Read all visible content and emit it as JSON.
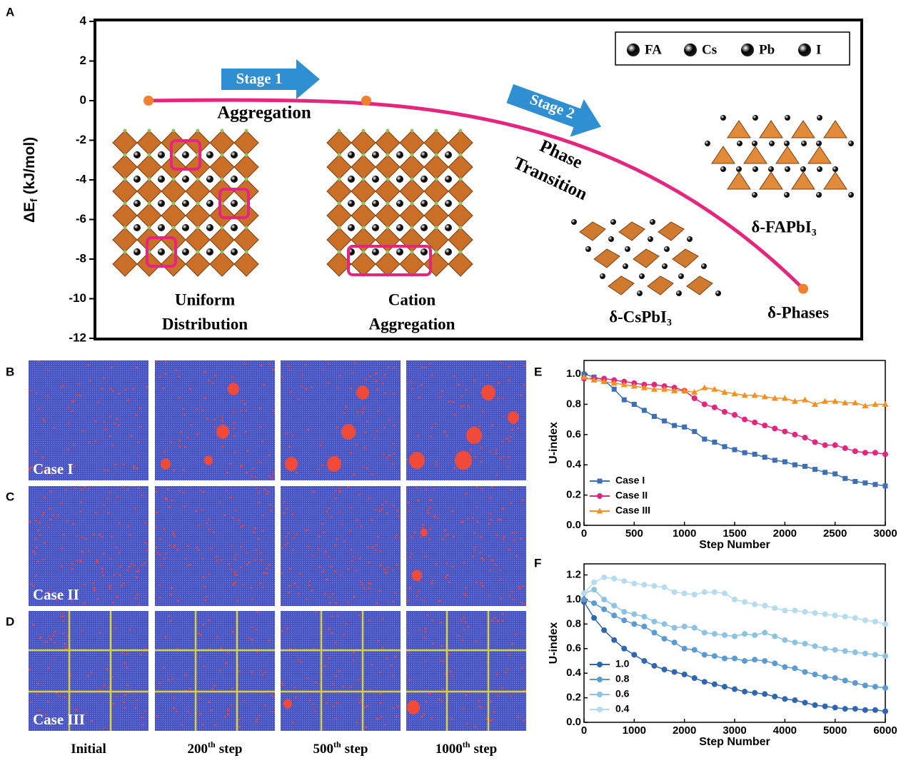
{
  "figure": {
    "panel_labels": [
      "A",
      "B",
      "C",
      "D",
      "E",
      "F"
    ],
    "simulation": {
      "cases": [
        "Case I",
        "Case II",
        "Case III"
      ],
      "columns": [
        {
          "text": "Initial"
        },
        {
          "text": "200",
          "sup": "th",
          "rest": "step"
        },
        {
          "text": "500",
          "sup": "th",
          "rest": "step"
        },
        {
          "text": "1000",
          "sup": "th",
          "rest": "step"
        }
      ]
    }
  },
  "chart_data": [
    {
      "type": "energy",
      "y_label": {
        "main": "ΔE",
        "sub": "f",
        "unit": "(kJ/mol)"
      },
      "categories": [
        null,
        null,
        null
      ],
      "values": [
        0,
        0,
        -9.5
      ],
      "color": "#e5267e",
      "marker_color": "#f08030",
      "ylim": [
        -12,
        4
      ],
      "yticks": [
        4,
        2,
        0,
        -2,
        -4,
        -6,
        -8,
        -10,
        -12
      ],
      "legend": [
        {
          "name": "FA",
          "color": "#4a63b8"
        },
        {
          "name": "Cs",
          "color": "#e5267e"
        },
        {
          "name": "Pb",
          "color": "#d9a22a"
        },
        {
          "name": "I",
          "color": "#5c9a45"
        }
      ],
      "annotations": {
        "stage1": "Stage 1",
        "aggregation": "Aggregation",
        "stage2": "Stage 2",
        "phase_transition": [
          "Phase",
          "Transition"
        ],
        "uniform": [
          "Uniform",
          "Distribution"
        ],
        "cation": [
          "Cation",
          "Aggregation"
        ],
        "cspbi3": "δ-CsPbI₃",
        "fapbi3": "δ-FAPbI₃",
        "phases": "δ-Phases"
      }
    },
    {
      "type": "line",
      "x_label": "Step Number",
      "y_label": "U-index",
      "x": [
        0,
        100,
        200,
        300,
        400,
        500,
        600,
        700,
        800,
        900,
        1000,
        1100,
        1200,
        1300,
        1400,
        1500,
        1600,
        1700,
        1800,
        1900,
        2000,
        2100,
        2200,
        2300,
        2400,
        2500,
        2600,
        2700,
        2800,
        2900,
        3000
      ],
      "series": [
        {
          "name": "Case I",
          "color": "#3d6fb6",
          "marker": "square",
          "values": [
            1.0,
            0.98,
            0.96,
            0.9,
            0.83,
            0.8,
            0.76,
            0.72,
            0.69,
            0.66,
            0.65,
            0.62,
            0.57,
            0.55,
            0.52,
            0.5,
            0.48,
            0.47,
            0.45,
            0.43,
            0.42,
            0.4,
            0.39,
            0.37,
            0.35,
            0.34,
            0.31,
            0.29,
            0.28,
            0.27,
            0.26
          ]
        },
        {
          "name": "Case II",
          "color": "#e5267e",
          "marker": "circle",
          "values": [
            0.97,
            0.97,
            0.97,
            0.96,
            0.95,
            0.94,
            0.93,
            0.93,
            0.92,
            0.91,
            0.89,
            0.84,
            0.8,
            0.78,
            0.75,
            0.73,
            0.7,
            0.68,
            0.66,
            0.64,
            0.62,
            0.6,
            0.58,
            0.55,
            0.53,
            0.53,
            0.51,
            0.49,
            0.48,
            0.48,
            0.47
          ]
        },
        {
          "name": "Case III",
          "color": "#f39020",
          "marker": "triangle",
          "values": [
            0.98,
            0.96,
            0.95,
            0.94,
            0.93,
            0.92,
            0.91,
            0.9,
            0.9,
            0.89,
            0.89,
            0.88,
            0.91,
            0.9,
            0.88,
            0.87,
            0.86,
            0.86,
            0.85,
            0.84,
            0.84,
            0.82,
            0.83,
            0.8,
            0.82,
            0.82,
            0.81,
            0.81,
            0.79,
            0.8,
            0.8
          ]
        }
      ],
      "xlim": [
        0,
        3000
      ],
      "xticks": [
        0,
        500,
        1000,
        1500,
        2000,
        2500,
        3000
      ],
      "ylim": [
        0,
        1.09
      ],
      "yticks": [
        {
          "value": 0,
          "label": "0.0"
        },
        {
          "value": 0.2,
          "label": "0.2"
        },
        {
          "value": 0.4,
          "label": "0.4"
        },
        {
          "value": 0.6,
          "label": "0.6"
        },
        {
          "value": 0.8,
          "label": "0.8"
        },
        {
          "value": 1,
          "label": "1.0"
        }
      ]
    },
    {
      "type": "line",
      "x_label": "Step Number",
      "y_label": "U-index",
      "x": [
        0,
        200,
        400,
        600,
        800,
        1000,
        1200,
        1400,
        1600,
        1800,
        2000,
        2200,
        2400,
        2600,
        2800,
        3000,
        3200,
        3400,
        3600,
        3800,
        4000,
        4200,
        4400,
        4600,
        4800,
        5000,
        5200,
        5400,
        5600,
        5800,
        6000
      ],
      "series": [
        {
          "name": "1.0",
          "color": "#2e66b0",
          "marker": "circle",
          "values": [
            0.98,
            0.85,
            0.75,
            0.67,
            0.6,
            0.55,
            0.5,
            0.46,
            0.43,
            0.41,
            0.39,
            0.36,
            0.33,
            0.31,
            0.29,
            0.27,
            0.25,
            0.24,
            0.23,
            0.21,
            0.19,
            0.18,
            0.16,
            0.14,
            0.13,
            0.12,
            0.11,
            0.11,
            0.1,
            0.1,
            0.09
          ]
        },
        {
          "name": "0.8",
          "color": "#5b9bd3",
          "marker": "circle",
          "values": [
            1.0,
            0.97,
            0.92,
            0.87,
            0.83,
            0.8,
            0.78,
            0.73,
            0.68,
            0.65,
            0.6,
            0.59,
            0.55,
            0.54,
            0.52,
            0.52,
            0.5,
            0.51,
            0.5,
            0.48,
            0.45,
            0.44,
            0.41,
            0.39,
            0.37,
            0.36,
            0.34,
            0.32,
            0.3,
            0.29,
            0.28
          ]
        },
        {
          "name": "0.6",
          "color": "#8cc3e0",
          "marker": "circle",
          "values": [
            1.05,
            1.08,
            1.0,
            0.95,
            0.9,
            0.88,
            0.86,
            0.82,
            0.8,
            0.77,
            0.78,
            0.77,
            0.73,
            0.72,
            0.71,
            0.7,
            0.72,
            0.71,
            0.73,
            0.7,
            0.67,
            0.65,
            0.64,
            0.62,
            0.6,
            0.59,
            0.58,
            0.57,
            0.56,
            0.55,
            0.54
          ]
        },
        {
          "name": "0.4",
          "color": "#b5dcee",
          "marker": "circle",
          "values": [
            1.05,
            1.14,
            1.18,
            1.17,
            1.15,
            1.13,
            1.12,
            1.11,
            1.1,
            1.06,
            1.05,
            1.04,
            1.06,
            1.06,
            1.05,
            1.0,
            0.98,
            0.96,
            0.95,
            0.93,
            0.91,
            0.91,
            0.9,
            0.89,
            0.88,
            0.87,
            0.86,
            0.85,
            0.83,
            0.82,
            0.8
          ]
        }
      ],
      "xlim": [
        0,
        6000
      ],
      "xticks": [
        0,
        1000,
        2000,
        3000,
        4000,
        5000,
        6000
      ],
      "ylim": [
        0,
        1.29
      ],
      "yticks": [
        {
          "value": 0,
          "label": "0.0"
        },
        {
          "value": 0.2,
          "label": "0.2"
        },
        {
          "value": 0.4,
          "label": "0.4"
        },
        {
          "value": 0.6,
          "label": "0.6"
        },
        {
          "value": 0.8,
          "label": "0.8"
        },
        {
          "value": 1,
          "label": "1.0"
        },
        {
          "value": 1.2,
          "label": "1.2"
        }
      ]
    }
  ]
}
